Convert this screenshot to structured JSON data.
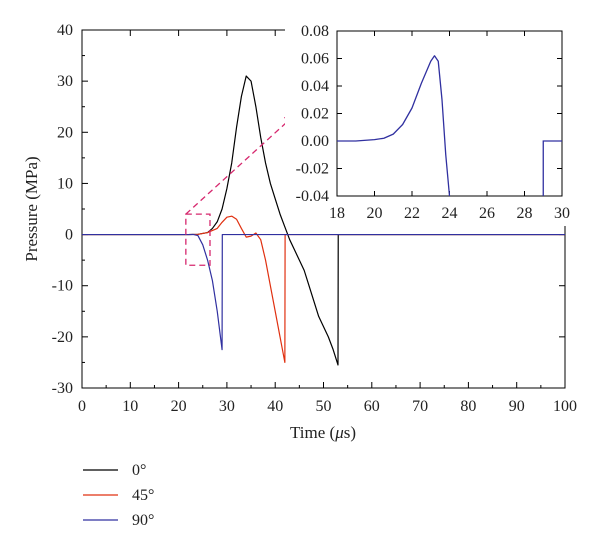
{
  "chart_data": {
    "type": "line",
    "main": {
      "xlabel_prefix": "Time (",
      "xlabel_unit": "μ",
      "xlabel_suffix": "s)",
      "ylabel": "Pressure (MPa)",
      "xlim": [
        0,
        100
      ],
      "ylim": [
        -30,
        40
      ],
      "xticks": [
        0,
        10,
        20,
        30,
        40,
        50,
        60,
        70,
        80,
        90,
        100
      ],
      "yticks": [
        -30,
        -20,
        -10,
        0,
        10,
        20,
        30,
        40
      ],
      "series": [
        {
          "name": "0°",
          "color": "#000000",
          "points": [
            [
              0,
              0
            ],
            [
              22,
              0
            ],
            [
              24,
              0.05
            ],
            [
              26,
              0.4
            ],
            [
              27,
              1.2
            ],
            [
              28,
              2.5
            ],
            [
              29,
              5
            ],
            [
              30,
              9
            ],
            [
              31,
              14
            ],
            [
              32,
              21
            ],
            [
              33,
              27
            ],
            [
              34,
              31
            ],
            [
              35,
              30
            ],
            [
              36,
              25
            ],
            [
              37,
              19
            ],
            [
              38,
              14
            ],
            [
              39,
              10
            ],
            [
              40,
              7
            ],
            [
              41,
              4
            ],
            [
              42,
              1.5
            ],
            [
              43,
              -1
            ],
            [
              44,
              -3
            ],
            [
              45,
              -5
            ],
            [
              46,
              -7
            ],
            [
              47,
              -10
            ],
            [
              48,
              -13
            ],
            [
              49,
              -16
            ],
            [
              50,
              -18
            ],
            [
              51,
              -20
            ],
            [
              52,
              -22.5
            ],
            [
              53,
              -25.5
            ],
            [
              53.05,
              0
            ],
            [
              100,
              0
            ]
          ]
        },
        {
          "name": "45°",
          "color": "#e03010",
          "points": [
            [
              0,
              0
            ],
            [
              22,
              0
            ],
            [
              24,
              0.05
            ],
            [
              26,
              0.4
            ],
            [
              28,
              1.2
            ],
            [
              29,
              2.4
            ],
            [
              30,
              3.4
            ],
            [
              31,
              3.6
            ],
            [
              32,
              3.0
            ],
            [
              33,
              1.2
            ],
            [
              34,
              -0.5
            ],
            [
              35,
              -0.3
            ],
            [
              36,
              0.3
            ],
            [
              37,
              -1
            ],
            [
              38,
              -5
            ],
            [
              39,
              -10
            ],
            [
              40,
              -15
            ],
            [
              41,
              -20
            ],
            [
              42,
              -25
            ],
            [
              42.05,
              0
            ],
            [
              100,
              0
            ]
          ]
        },
        {
          "name": "90°",
          "color": "#3030a0",
          "points": [
            [
              0,
              0
            ],
            [
              22,
              0
            ],
            [
              23,
              0.02
            ],
            [
              24,
              -0.2
            ],
            [
              25,
              -2
            ],
            [
              26,
              -5
            ],
            [
              27,
              -9
            ],
            [
              28,
              -15
            ],
            [
              29,
              -22.5
            ],
            [
              29.05,
              0
            ],
            [
              100,
              0
            ]
          ]
        }
      ]
    },
    "inset": {
      "xlim": [
        18,
        30
      ],
      "ylim": [
        -0.04,
        0.08
      ],
      "xticks": [
        18,
        20,
        22,
        24,
        26,
        28,
        30
      ],
      "yticks": [
        "-0.04",
        "-0.02",
        "0.00",
        "0.02",
        "0.04",
        "0.06",
        "0.08"
      ],
      "series": {
        "color": "#3030a0",
        "points": [
          [
            18,
            0
          ],
          [
            19,
            0
          ],
          [
            20,
            0.001
          ],
          [
            20.5,
            0.002
          ],
          [
            21,
            0.005
          ],
          [
            21.5,
            0.012
          ],
          [
            22,
            0.024
          ],
          [
            22.5,
            0.042
          ],
          [
            23,
            0.058
          ],
          [
            23.2,
            0.062
          ],
          [
            23.4,
            0.058
          ],
          [
            23.6,
            0.03
          ],
          [
            23.8,
            -0.01
          ],
          [
            24,
            -0.04
          ]
        ],
        "points_after": [
          [
            29,
            -0.04
          ],
          [
            29,
            0
          ],
          [
            30,
            0
          ]
        ]
      }
    },
    "legend": [
      {
        "name": "0°",
        "color": "#000000"
      },
      {
        "name": "45°",
        "color": "#e03010"
      },
      {
        "name": "90°",
        "color": "#3030a0"
      }
    ],
    "zoom_box_range": {
      "x": [
        21.5,
        26.5
      ],
      "y": [
        -6,
        4
      ]
    }
  }
}
